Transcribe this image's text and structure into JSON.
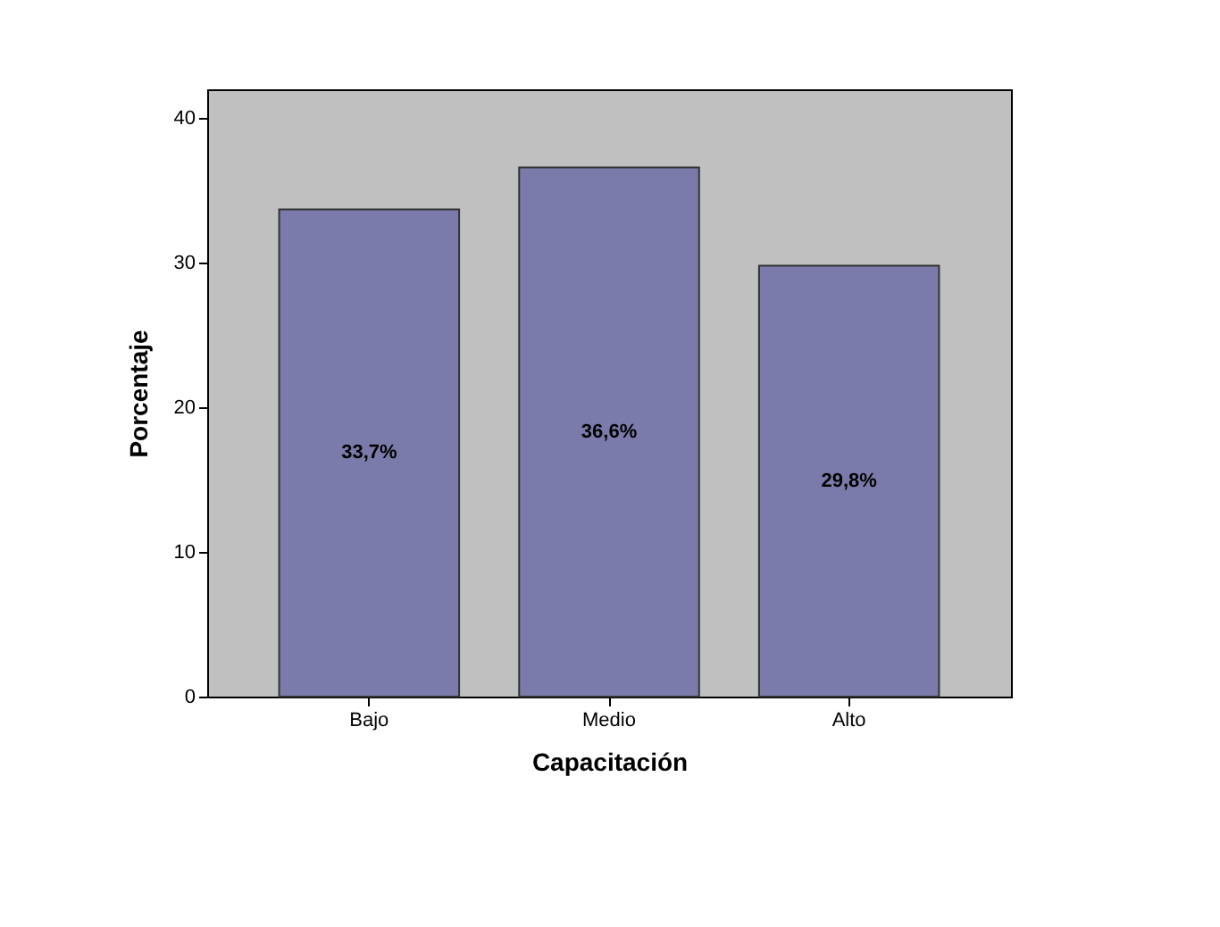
{
  "chart_data": {
    "type": "bar",
    "xlabel": "Capacitación",
    "ylabel": "Porcentaje",
    "categories": [
      "Bajo",
      "Medio",
      "Alto"
    ],
    "values": [
      33.7,
      36.6,
      29.8
    ],
    "value_labels": [
      "33,7%",
      "36,6%",
      "29,8%"
    ],
    "color": "#7b7bab",
    "ylim": [
      0,
      42
    ],
    "yticks": [
      0,
      10,
      20,
      30,
      40
    ],
    "grid": false
  }
}
